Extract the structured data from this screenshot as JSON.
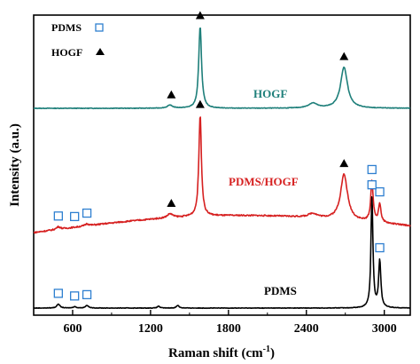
{
  "chart_data": {
    "type": "line",
    "title": "",
    "xlabel_main": "Raman shift (cm",
    "xlabel_sup": "-1",
    "xlabel_end": ")",
    "ylabel": "Intensity (a.u.)",
    "xlim": [
      300,
      3200
    ],
    "xticks": [
      "600",
      "1200",
      "1800",
      "2400",
      "3000"
    ],
    "xtick_values": [
      600,
      1200,
      1800,
      2400,
      3000
    ],
    "legend": [
      {
        "label": "PDMS",
        "marker": "open-square",
        "color": "#2e7fd0"
      },
      {
        "label": "HOGF",
        "marker": "filled-triangle",
        "color": "#000000"
      }
    ],
    "series": [
      {
        "name": "HOGF",
        "color": "#1e7f7a",
        "label_x": 2060,
        "baseline": 0.63,
        "peaks": [
          {
            "x": 1350,
            "height": 0.008,
            "width": 25
          },
          {
            "x": 1582,
            "height": 0.22,
            "width": 13
          },
          {
            "x": 2450,
            "height": 0.013,
            "width": 40
          },
          {
            "x": 2690,
            "height": 0.11,
            "width": 32
          }
        ],
        "markers": [
          {
            "x": 1360,
            "type": "triangle"
          },
          {
            "x": 1582,
            "type": "triangle"
          },
          {
            "x": 2690,
            "type": "triangle"
          }
        ]
      },
      {
        "name": "PDMS/HOGF",
        "color": "#d62020",
        "label_x": 1730,
        "baseline": 0.0,
        "slope": true,
        "peaks": [
          {
            "x": 490,
            "height": 0.008,
            "width": 18
          },
          {
            "x": 710,
            "height": 0.006,
            "width": 18
          },
          {
            "x": 1350,
            "height": 0.012,
            "width": 25
          },
          {
            "x": 1582,
            "height": 0.3,
            "width": 12
          },
          {
            "x": 2450,
            "height": 0.012,
            "width": 40
          },
          {
            "x": 2690,
            "height": 0.135,
            "width": 32
          },
          {
            "x": 2905,
            "height": 0.12,
            "width": 11
          },
          {
            "x": 2965,
            "height": 0.055,
            "width": 11
          }
        ],
        "markers": [
          {
            "x": 490,
            "type": "square"
          },
          {
            "x": 615,
            "type": "square"
          },
          {
            "x": 710,
            "type": "square"
          },
          {
            "x": 1360,
            "type": "triangle"
          },
          {
            "x": 1582,
            "type": "triangle"
          },
          {
            "x": 2690,
            "type": "triangle"
          },
          {
            "x": 2905,
            "type": "square"
          },
          {
            "x": 2965,
            "type": "square"
          }
        ]
      },
      {
        "name": "PDMS",
        "color": "#000000",
        "label_x": 1800,
        "baseline": 0.0,
        "peaks": [
          {
            "x": 490,
            "height": 0.012,
            "width": 14
          },
          {
            "x": 615,
            "height": 0.004,
            "width": 14
          },
          {
            "x": 710,
            "height": 0.008,
            "width": 14
          },
          {
            "x": 1262,
            "height": 0.006,
            "width": 10
          },
          {
            "x": 1410,
            "height": 0.008,
            "width": 12
          },
          {
            "x": 2905,
            "height": 0.33,
            "width": 9
          },
          {
            "x": 2965,
            "height": 0.14,
            "width": 10
          }
        ],
        "markers": [
          {
            "x": 490,
            "type": "square"
          },
          {
            "x": 615,
            "type": "square"
          },
          {
            "x": 710,
            "type": "square"
          },
          {
            "x": 2905,
            "type": "square"
          },
          {
            "x": 2965,
            "type": "square"
          }
        ]
      }
    ],
    "grid": false
  }
}
